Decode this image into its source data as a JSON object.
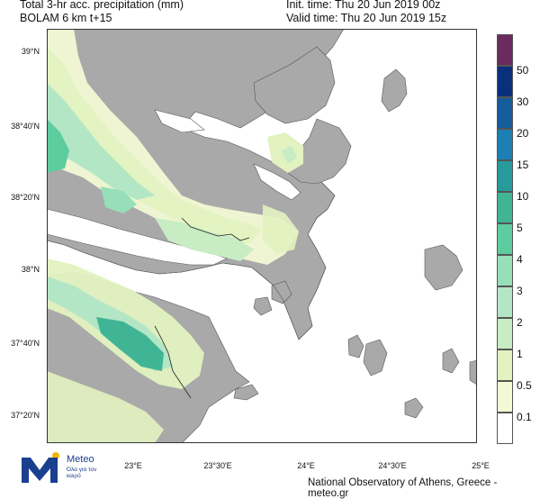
{
  "header": {
    "title_line1": "Total 3-hr acc. precipitation (mm)",
    "title_line2": "BOLAM 6 km t+15",
    "init_time": "Init. time: Thu 20 Jun 2019 00z",
    "valid_time": "Valid time: Thu 20 Jun 2019 15z"
  },
  "map": {
    "lat_labels": [
      "39°N",
      "38°40'N",
      "38°20'N",
      "38°N",
      "37°40'N",
      "37°20'N"
    ],
    "lon_labels": [
      "23°E",
      "23°30'E",
      "24°E",
      "24°30'E",
      "25°E"
    ],
    "land_color": "#a9a9a9",
    "sea_color": "#ffffff"
  },
  "legend": {
    "levels": [
      "0.1",
      "0.5",
      "1",
      "2",
      "3",
      "4",
      "5",
      "10",
      "15",
      "20",
      "30",
      "50"
    ],
    "colors": [
      "#ffffff",
      "#f2f9d4",
      "#e2f2c0",
      "#c8ecc4",
      "#b3e6c4",
      "#96dfb8",
      "#5dcc9e",
      "#40b596",
      "#279b9b",
      "#1d7fb3",
      "#145c9b",
      "#0a2f7d",
      "#6b2b5e"
    ]
  },
  "logo": {
    "name": "Meteo",
    "tagline": "Όλα για τον καιρό"
  },
  "footer": {
    "credit": "National Observatory of Athens, Greece - meteo.gr"
  }
}
